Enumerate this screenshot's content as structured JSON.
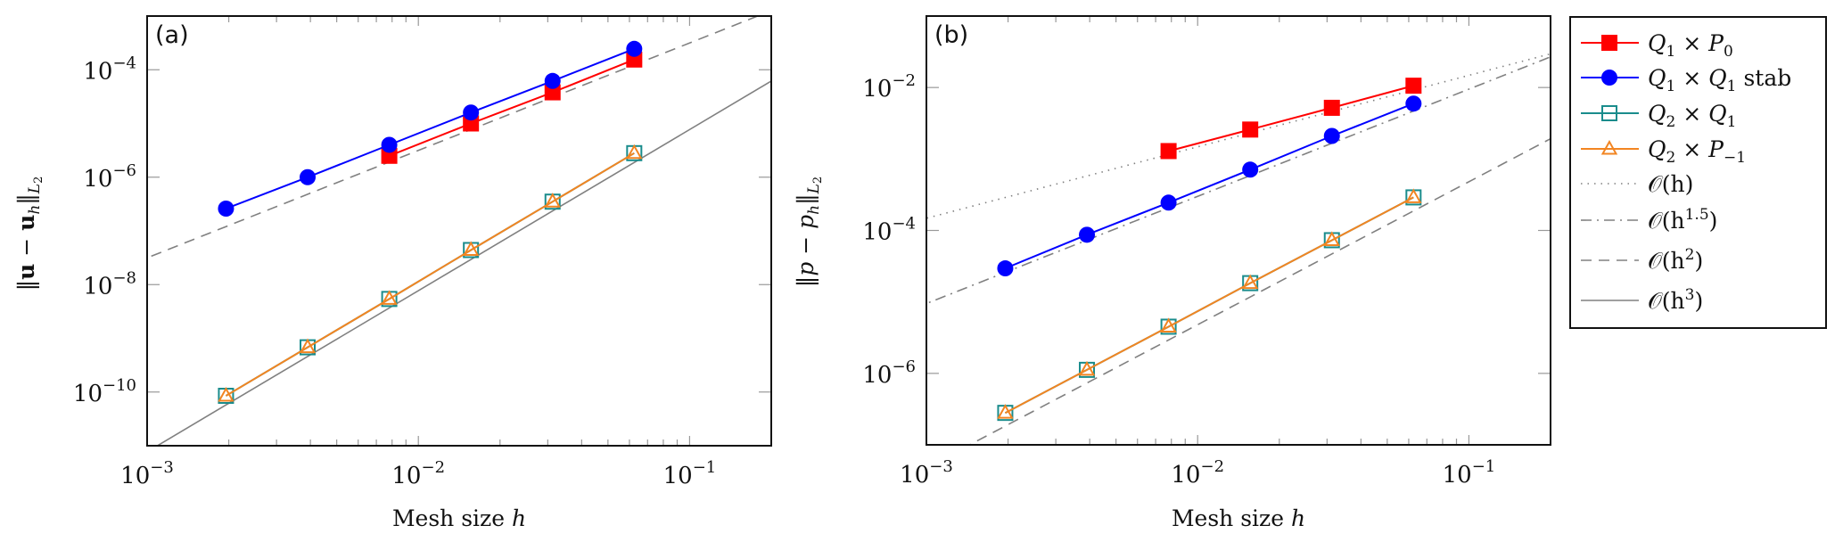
{
  "chart_data": [
    {
      "type": "line",
      "panel_label": "(a)",
      "title": "",
      "xlabel": "Mesh size h",
      "xlabel_parts": {
        "text": "Mesh size ",
        "var": "h"
      },
      "ylabel": "||u - u_h||_{L_2}",
      "ylabel_parts": {
        "open": "‖",
        "u1": "u",
        "minus": " − ",
        "u2": "u",
        "sub_h": "h",
        "close": "‖",
        "sub_norm": "L",
        "sub_norm_index": "2"
      },
      "xscale": "log",
      "yscale": "log",
      "xlim": [
        0.001,
        0.2
      ],
      "ylim": [
        1e-11,
        0.001
      ],
      "xticks": [
        {
          "base": "10",
          "exp": "−3",
          "value": 0.001
        },
        {
          "base": "10",
          "exp": "−2",
          "value": 0.01
        },
        {
          "base": "10",
          "exp": "−1",
          "value": 0.1
        }
      ],
      "yticks": [
        {
          "base": "10",
          "exp": "−4",
          "value": 0.0001
        },
        {
          "base": "10",
          "exp": "−6",
          "value": 1e-06
        },
        {
          "base": "10",
          "exp": "−8",
          "value": 1e-08
        },
        {
          "base": "10",
          "exp": "−10",
          "value": 1e-10
        }
      ],
      "grid": false,
      "series": [
        {
          "name": "Q1 x P0",
          "color": "#ff0000",
          "marker": "filled-square",
          "x": [
            0.0078125,
            0.015625,
            0.03125,
            0.0625
          ],
          "y": [
            2.5e-06,
            1e-05,
            3.8e-05,
            0.000155
          ]
        },
        {
          "name": "Q1 x Q1 stab",
          "color": "#0000ff",
          "marker": "filled-circle",
          "x": [
            0.001953125,
            0.00390625,
            0.0078125,
            0.015625,
            0.03125,
            0.0625
          ],
          "y": [
            2.6e-07,
            1e-06,
            4e-06,
            1.6e-05,
            6.2e-05,
            0.000245
          ]
        },
        {
          "name": "Q2 x Q1",
          "color": "#1a8c8c",
          "marker": "open-square",
          "x": [
            0.001953125,
            0.00390625,
            0.0078125,
            0.015625,
            0.03125,
            0.0625
          ],
          "y": [
            8.5e-11,
            6.8e-10,
            5.4e-09,
            4.4e-08,
            3.5e-07,
            2.8e-06
          ]
        },
        {
          "name": "Q2 x P-1",
          "color": "#f28522",
          "marker": "open-triangle",
          "x": [
            0.001953125,
            0.00390625,
            0.0078125,
            0.015625,
            0.03125,
            0.0625
          ],
          "y": [
            8.5e-11,
            6.8e-10,
            5.4e-09,
            4.4e-08,
            3.5e-07,
            2.8e-06
          ]
        }
      ],
      "reference_lines": [
        {
          "name": "O(h^2)",
          "order": 2,
          "coefficient": 0.0315,
          "style": "dashed",
          "color": "#808080"
        },
        {
          "name": "O(h^3)",
          "order": 3,
          "coefficient": 0.0077,
          "style": "solid",
          "color": "#808080"
        }
      ]
    },
    {
      "type": "line",
      "panel_label": "(b)",
      "title": "",
      "xlabel": "Mesh size h",
      "xlabel_parts": {
        "text": "Mesh size ",
        "var": "h"
      },
      "ylabel": "||p - p_h||_{L_2}",
      "ylabel_parts": {
        "open": "‖",
        "u1": "p",
        "minus": " − ",
        "u2": "p",
        "sub_h": "h",
        "close": "‖",
        "sub_norm": "L",
        "sub_norm_index": "2"
      },
      "xscale": "log",
      "yscale": "log",
      "xlim": [
        0.001,
        0.2
      ],
      "ylim": [
        1e-07,
        0.1
      ],
      "xticks": [
        {
          "base": "10",
          "exp": "−3",
          "value": 0.001
        },
        {
          "base": "10",
          "exp": "−2",
          "value": 0.01
        },
        {
          "base": "10",
          "exp": "−1",
          "value": 0.1
        }
      ],
      "yticks": [
        {
          "base": "10",
          "exp": "−2",
          "value": 0.01
        },
        {
          "base": "10",
          "exp": "−4",
          "value": 0.0001
        },
        {
          "base": "10",
          "exp": "−6",
          "value": 1e-06
        }
      ],
      "grid": false,
      "series": [
        {
          "name": "Q1 x P0",
          "color": "#ff0000",
          "marker": "filled-square",
          "x": [
            0.0078125,
            0.015625,
            0.03125,
            0.0625
          ],
          "y": [
            0.00129,
            0.00258,
            0.0052,
            0.0106
          ]
        },
        {
          "name": "Q1 x Q1 stab",
          "color": "#0000ff",
          "marker": "filled-circle",
          "x": [
            0.001953125,
            0.00390625,
            0.0078125,
            0.015625,
            0.03125,
            0.0625
          ],
          "y": [
            2.95e-05,
            8.7e-05,
            0.000245,
            0.00071,
            0.0021,
            0.00595
          ]
        },
        {
          "name": "Q2 x Q1",
          "color": "#1a8c8c",
          "marker": "open-square",
          "x": [
            0.001953125,
            0.00390625,
            0.0078125,
            0.015625,
            0.03125,
            0.0625
          ],
          "y": [
            2.8e-07,
            1.12e-06,
            4.5e-06,
            1.83e-05,
            7.3e-05,
            0.00029
          ]
        },
        {
          "name": "Q2 x P-1",
          "color": "#f28522",
          "marker": "open-triangle",
          "x": [
            0.001953125,
            0.00390625,
            0.0078125,
            0.015625,
            0.03125,
            0.0625
          ],
          "y": [
            2.8e-07,
            1.12e-06,
            4.5e-06,
            1.83e-05,
            7.3e-05,
            0.00029
          ]
        }
      ],
      "reference_lines": [
        {
          "name": "O(h)",
          "order": 1,
          "coefficient": 0.148,
          "style": "dotted",
          "color": "#808080"
        },
        {
          "name": "O(h^1.5)",
          "order": 1.5,
          "coefficient": 0.3,
          "style": "dash-dot",
          "color": "#808080"
        },
        {
          "name": "O(h^2)",
          "order": 2,
          "coefficient": 0.048,
          "style": "dashed",
          "color": "#808080"
        }
      ]
    }
  ],
  "legend": {
    "placement": "right",
    "entries": [
      {
        "key": "q1p0",
        "main": "Q",
        "sub1": "1",
        "times": " × ",
        "main2": "P",
        "sub2": "0",
        "suffix": "",
        "color": "#ff0000",
        "marker": "filled-square",
        "style": "solid"
      },
      {
        "key": "q1q1stab",
        "main": "Q",
        "sub1": "1",
        "times": " × ",
        "main2": "Q",
        "sub2": "1",
        "suffix": " stab",
        "color": "#0000ff",
        "marker": "filled-circle",
        "style": "solid"
      },
      {
        "key": "q2q1",
        "main": "Q",
        "sub1": "2",
        "times": " × ",
        "main2": "Q",
        "sub2": "1",
        "suffix": "",
        "color": "#1a8c8c",
        "marker": "open-square",
        "style": "solid"
      },
      {
        "key": "q2pm1",
        "main": "Q",
        "sub1": "2",
        "times": " × ",
        "main2": "P",
        "sub2": "−1",
        "suffix": "",
        "color": "#f28522",
        "marker": "open-triangle",
        "style": "solid"
      },
      {
        "key": "oh",
        "main": "𝒪(h",
        "sup": "",
        "close": ")",
        "color": "#808080",
        "marker": "none",
        "style": "dotted"
      },
      {
        "key": "oh15",
        "main": "𝒪(h",
        "sup": "1.5",
        "close": ")",
        "color": "#808080",
        "marker": "none",
        "style": "dash-dot"
      },
      {
        "key": "oh2",
        "main": "𝒪(h",
        "sup": "2",
        "close": ")",
        "color": "#808080",
        "marker": "none",
        "style": "dashed"
      },
      {
        "key": "oh3",
        "main": "𝒪(h",
        "sup": "3",
        "close": ")",
        "color": "#808080",
        "marker": "none",
        "style": "solid"
      }
    ]
  }
}
